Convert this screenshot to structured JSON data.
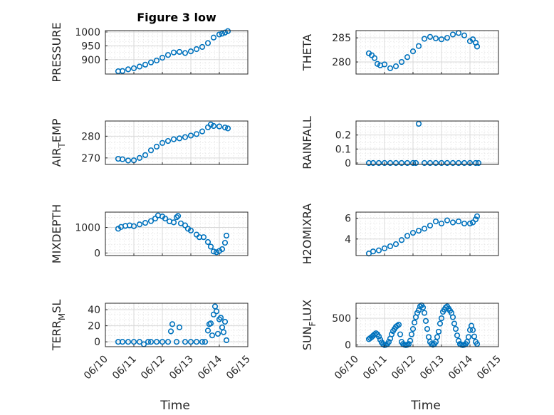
{
  "chart_data": [
    {
      "type": "scatter",
      "title": "Figure 3 low",
      "ylabel": "PRESSURE",
      "yticks": [
        "1000",
        "950",
        "900"
      ],
      "ytick_values": [
        1000,
        950,
        900
      ],
      "ylim": [
        848,
        1005
      ],
      "xlim": [
        "06/10",
        "06/15"
      ],
      "grid": true,
      "series": [
        {
          "x": [
            10.45,
            10.6,
            10.8,
            11.0,
            11.2,
            11.4,
            11.6,
            11.8,
            12.0,
            12.2,
            12.4,
            12.6,
            12.8,
            13.0,
            13.2,
            13.4,
            13.6,
            13.8,
            14.0,
            14.1,
            14.2,
            14.3
          ],
          "y": [
            858,
            859,
            865,
            869,
            875,
            882,
            890,
            897,
            907,
            917,
            926,
            928,
            924,
            930,
            938,
            946,
            960,
            980,
            991,
            994,
            998,
            1003
          ]
        }
      ]
    },
    {
      "type": "scatter",
      "title": "",
      "ylabel": "THETA",
      "yticks": [
        "285",
        "280"
      ],
      "ytick_values": [
        285,
        280
      ],
      "ylim": [
        277.5,
        286.5
      ],
      "xlim": [
        "06/10",
        "06/15"
      ],
      "grid": true,
      "series": [
        {
          "x": [
            10.45,
            10.55,
            10.65,
            10.75,
            10.85,
            11.0,
            11.2,
            11.4,
            11.6,
            11.8,
            12.0,
            12.2,
            12.4,
            12.6,
            12.8,
            13.0,
            13.2,
            13.4,
            13.6,
            13.8,
            14.0,
            14.1,
            14.2,
            14.25
          ],
          "y": [
            281.8,
            281.4,
            280.8,
            279.6,
            279.3,
            279.5,
            278.7,
            279.1,
            280.0,
            281.0,
            282.2,
            283.3,
            284.8,
            285.2,
            284.9,
            284.7,
            285.0,
            285.7,
            286.0,
            285.5,
            284.3,
            284.7,
            284.0,
            283.2
          ]
        }
      ]
    },
    {
      "type": "scatter",
      "title": "",
      "ylabel": "AIR",
      "ylabel_sub": "T",
      "ylabel_suffix": "EMP",
      "yticks": [
        "280",
        "270"
      ],
      "ytick_values": [
        280,
        270
      ],
      "ylim": [
        267,
        287
      ],
      "xlim": [
        "06/10",
        "06/15"
      ],
      "grid": true,
      "series": [
        {
          "x": [
            10.45,
            10.6,
            10.8,
            11.0,
            11.2,
            11.4,
            11.6,
            11.8,
            12.0,
            12.2,
            12.4,
            12.6,
            12.8,
            13.0,
            13.2,
            13.4,
            13.6,
            13.7,
            13.8,
            14.0,
            14.2,
            14.3
          ],
          "y": [
            269.6,
            269.4,
            268.8,
            268.9,
            270.0,
            271.3,
            273.5,
            275.2,
            276.9,
            277.8,
            278.6,
            279.0,
            279.6,
            280.3,
            281.0,
            282.2,
            284.1,
            285.4,
            284.7,
            284.5,
            284.0,
            283.6
          ]
        }
      ]
    },
    {
      "type": "scatter",
      "title": "",
      "ylabel": "RAINFALL",
      "yticks": [
        "0.2",
        "0.1",
        "0"
      ],
      "ytick_values": [
        0.2,
        0.1,
        0
      ],
      "ylim": [
        -0.01,
        0.3
      ],
      "xlim": [
        "06/10",
        "06/15"
      ],
      "grid": true,
      "series": [
        {
          "x": [
            10.45,
            10.6,
            10.8,
            11.0,
            11.2,
            11.4,
            11.6,
            11.8,
            12.0,
            12.1,
            12.2,
            12.4,
            12.6,
            12.8,
            13.0,
            13.2,
            13.4,
            13.6,
            13.8,
            14.0,
            14.2,
            14.3
          ],
          "y": [
            0,
            0,
            0,
            0,
            0,
            0,
            0,
            0,
            0,
            0,
            0.28,
            0,
            0,
            0,
            0,
            0,
            0,
            0,
            0,
            0,
            0,
            0
          ]
        }
      ]
    },
    {
      "type": "scatter",
      "title": "",
      "ylabel": "MIXDEPTH",
      "yticks": [
        "1000",
        "0"
      ],
      "ytick_values": [
        1000,
        0
      ],
      "ylim": [
        -100,
        1600
      ],
      "xlim": [
        "06/10",
        "06/15"
      ],
      "grid": true,
      "series": [
        {
          "x": [
            10.45,
            10.55,
            10.7,
            10.85,
            11.0,
            11.2,
            11.4,
            11.6,
            11.75,
            11.85,
            12.0,
            12.1,
            12.25,
            12.4,
            12.5,
            12.55,
            12.65,
            12.8,
            12.9,
            13.0,
            13.2,
            13.3,
            13.45,
            13.6,
            13.7,
            13.8,
            13.9,
            14.0,
            14.1,
            14.2,
            14.25
          ],
          "y": [
            950,
            1020,
            1060,
            1080,
            1050,
            1120,
            1180,
            1250,
            1350,
            1470,
            1430,
            1350,
            1240,
            1200,
            1400,
            1450,
            1160,
            1080,
            950,
            880,
            720,
            620,
            620,
            430,
            250,
            60,
            30,
            80,
            150,
            400,
            680
          ]
        }
      ]
    },
    {
      "type": "scatter",
      "title": "",
      "ylabel": "H2OMIXRA",
      "yticks": [
        "6",
        "4"
      ],
      "ytick_values": [
        6,
        4
      ],
      "ylim": [
        2.4,
        6.6
      ],
      "xlim": [
        "06/10",
        "06/15"
      ],
      "grid": true,
      "series": [
        {
          "x": [
            10.45,
            10.6,
            10.8,
            11.0,
            11.2,
            11.4,
            11.6,
            11.8,
            12.0,
            12.2,
            12.4,
            12.6,
            12.8,
            13.0,
            13.2,
            13.4,
            13.6,
            13.8,
            14.0,
            14.1,
            14.2,
            14.25
          ],
          "y": [
            2.6,
            2.8,
            2.9,
            3.1,
            3.3,
            3.5,
            3.9,
            4.3,
            4.6,
            4.8,
            5.0,
            5.3,
            5.7,
            5.5,
            5.8,
            5.6,
            5.7,
            5.5,
            5.5,
            5.6,
            5.9,
            6.2
          ]
        }
      ]
    },
    {
      "type": "scatter",
      "title": "",
      "ylabel": "TERR",
      "ylabel_sub": "M",
      "ylabel_suffix": "SL",
      "yticks": [
        "40",
        "20",
        "0"
      ],
      "ytick_values": [
        40,
        20,
        0
      ],
      "ylim": [
        -6,
        48
      ],
      "xlim": [
        "06/10",
        "06/15"
      ],
      "xticks": [
        "06/10",
        "06/11",
        "06/12",
        "06/13",
        "06/14",
        "06/15"
      ],
      "xlabel": "Time",
      "grid": true,
      "series": [
        {
          "x": [
            10.45,
            10.6,
            10.8,
            11.0,
            11.2,
            11.35,
            11.5,
            11.6,
            11.8,
            12.0,
            12.2,
            12.3,
            12.35,
            12.5,
            12.6,
            12.8,
            13.0,
            13.2,
            13.4,
            13.5,
            13.6,
            13.65,
            13.7,
            13.75,
            13.8,
            13.85,
            13.9,
            13.95,
            14.0,
            14.05,
            14.1,
            14.15,
            14.2,
            14.25
          ],
          "y": [
            0,
            0,
            0,
            0,
            0,
            -3,
            0,
            0,
            0,
            0,
            0,
            13,
            22,
            0,
            18,
            0,
            0,
            0,
            0,
            0,
            14,
            22,
            23,
            8,
            34,
            44,
            38,
            10,
            28,
            30,
            18,
            12,
            25,
            2
          ]
        }
      ]
    },
    {
      "type": "scatter",
      "title": "",
      "ylabel": "SUN",
      "ylabel_sub": "F",
      "ylabel_suffix": "LUX",
      "yticks": [
        "500",
        "0"
      ],
      "ytick_values": [
        500,
        0
      ],
      "ylim": [
        -30,
        780
      ],
      "xlim": [
        "06/10",
        "06/15"
      ],
      "xticks": [
        "06/10",
        "06/11",
        "06/12",
        "06/13",
        "06/14",
        "06/15"
      ],
      "xlabel": "Time",
      "grid": true,
      "series": [
        {
          "x": [
            10.45,
            10.5,
            10.55,
            10.6,
            10.65,
            10.7,
            10.75,
            10.8,
            10.85,
            10.9,
            10.95,
            11.0,
            11.05,
            11.1,
            11.15,
            11.2,
            11.25,
            11.3,
            11.35,
            11.4,
            11.45,
            11.5,
            11.55,
            11.6,
            11.65,
            11.7,
            11.75,
            11.8,
            11.85,
            11.9,
            11.95,
            12.0,
            12.05,
            12.1,
            12.15,
            12.2,
            12.25,
            12.3,
            12.35,
            12.4,
            12.45,
            12.5,
            12.55,
            12.6,
            12.65,
            12.7,
            12.75,
            12.8,
            12.85,
            12.9,
            12.95,
            13.0,
            13.05,
            13.1,
            13.15,
            13.2,
            13.25,
            13.3,
            13.35,
            13.4,
            13.45,
            13.5,
            13.55,
            13.6,
            13.65,
            13.7,
            13.75,
            13.8,
            13.85,
            13.9,
            13.95,
            14.0,
            14.05,
            14.1,
            14.15,
            14.2,
            14.25
          ],
          "y": [
            110,
            130,
            150,
            175,
            200,
            220,
            200,
            160,
            100,
            50,
            15,
            0,
            5,
            20,
            60,
            120,
            200,
            260,
            300,
            340,
            360,
            380,
            200,
            60,
            20,
            5,
            0,
            5,
            20,
            80,
            200,
            300,
            420,
            520,
            600,
            650,
            720,
            740,
            700,
            600,
            450,
            300,
            150,
            60,
            20,
            5,
            20,
            60,
            150,
            250,
            400,
            500,
            620,
            660,
            700,
            720,
            680,
            640,
            600,
            520,
            400,
            300,
            180,
            80,
            20,
            5,
            0,
            5,
            20,
            60,
            150,
            280,
            360,
            280,
            160,
            60,
            20
          ]
        }
      ]
    }
  ]
}
